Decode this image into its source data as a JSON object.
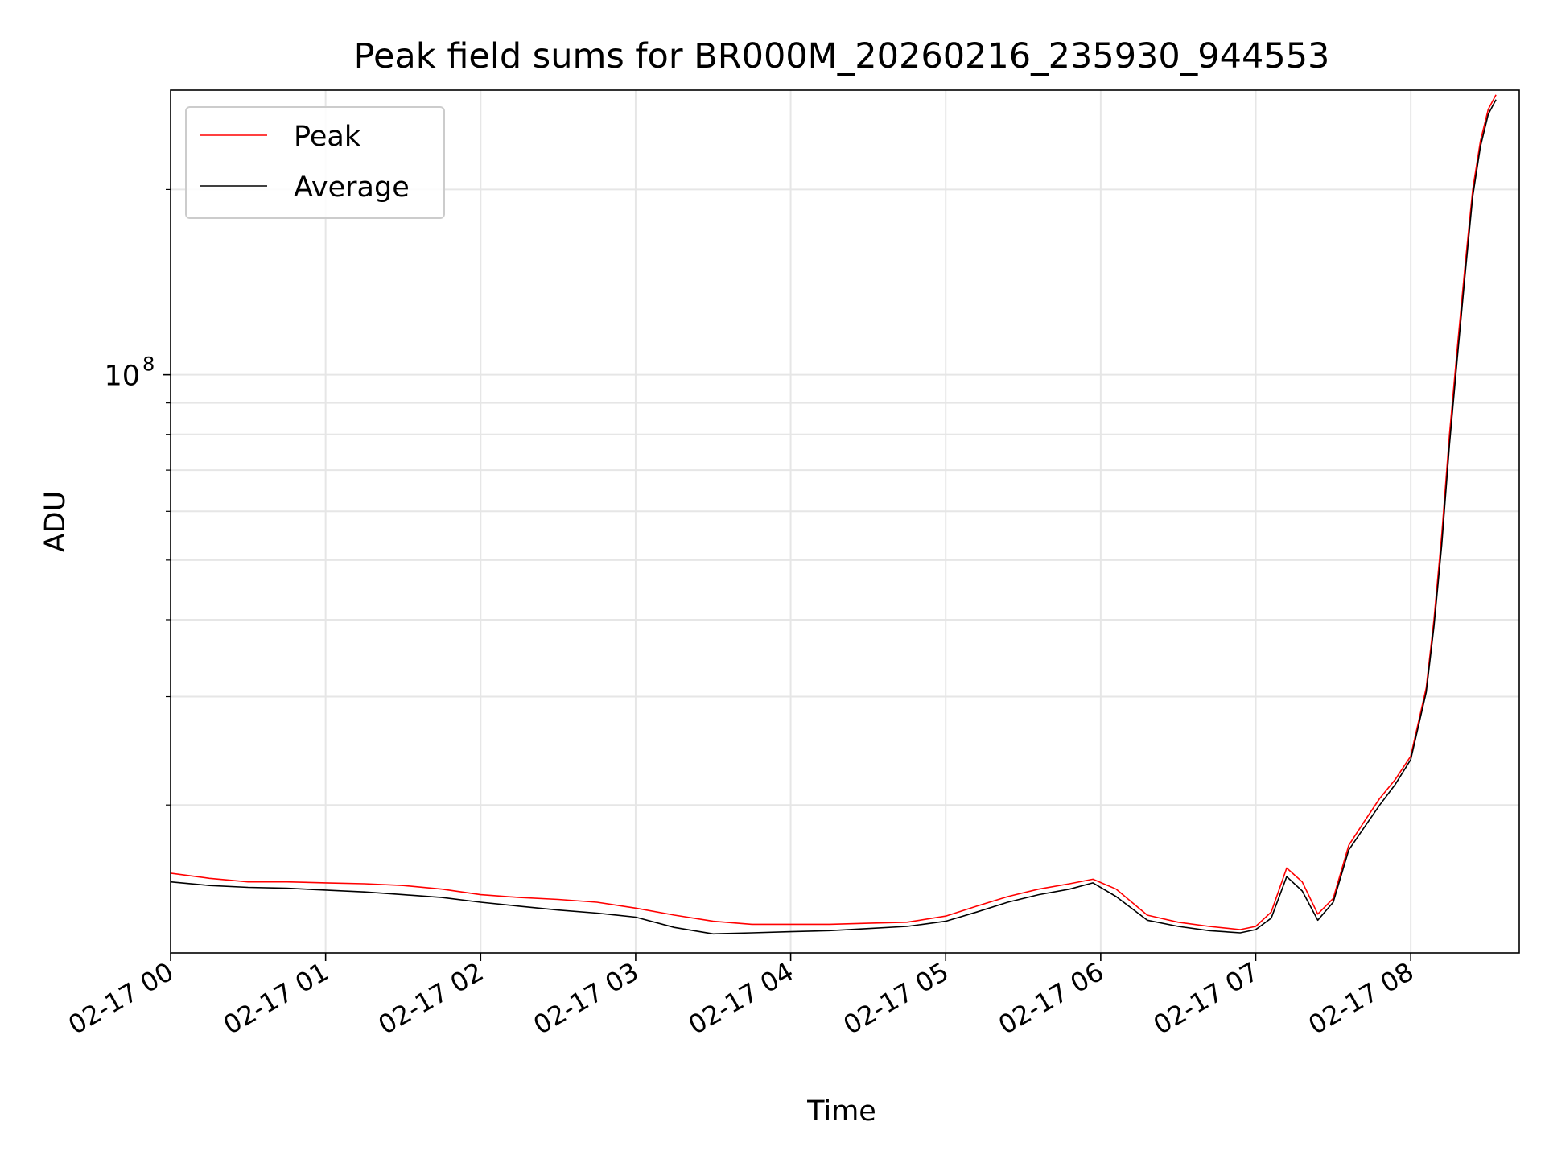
{
  "chart_data": {
    "type": "line",
    "title": "Peak field sums for BR000M_20260216_235930_944553",
    "xlabel": "Time",
    "ylabel": "ADU",
    "yscale": "log",
    "xlim_hours": [
      0,
      8.7
    ],
    "ylim": [
      11500000,
      290000000
    ],
    "grid": true,
    "legend_position": "upper-left",
    "x_tick_hours": [
      0,
      1,
      2,
      3,
      4,
      5,
      6,
      7,
      8
    ],
    "x_tick_labels": [
      "02-17 00",
      "02-17 01",
      "02-17 02",
      "02-17 03",
      "02-17 04",
      "02-17 05",
      "02-17 06",
      "02-17 07",
      "02-17 08"
    ],
    "y_major_ticks": [
      100000000
    ],
    "y_major_labels": [
      "10",
      "8"
    ],
    "y_minor_ticks": [
      20000000,
      30000000,
      40000000,
      50000000,
      60000000,
      70000000,
      80000000,
      90000000,
      200000000
    ],
    "colors": {
      "peak": "#ff0000",
      "average": "#000000",
      "grid": "#e6e6e6",
      "legend_border": "#cccccc"
    },
    "series": [
      {
        "name": "Peak",
        "color": "#ff0000",
        "x_hours": [
          0,
          0.25,
          0.5,
          0.75,
          1.0,
          1.25,
          1.5,
          1.75,
          2.0,
          2.25,
          2.5,
          2.75,
          3.0,
          3.25,
          3.5,
          3.75,
          4.0,
          4.25,
          4.5,
          4.75,
          5.0,
          5.2,
          5.4,
          5.6,
          5.8,
          5.95,
          6.1,
          6.3,
          6.5,
          6.7,
          6.9,
          7.0,
          7.1,
          7.2,
          7.3,
          7.4,
          7.5,
          7.6,
          7.7,
          7.8,
          7.9,
          8.0,
          8.1,
          8.15,
          8.2,
          8.25,
          8.3,
          8.35,
          8.4,
          8.45,
          8.5,
          8.55
        ],
        "values": [
          15500000,
          15200000,
          15000000,
          15000000,
          14950000,
          14900000,
          14800000,
          14600000,
          14300000,
          14150000,
          14050000,
          13900000,
          13600000,
          13250000,
          12950000,
          12800000,
          12800000,
          12800000,
          12850000,
          12900000,
          13200000,
          13700000,
          14200000,
          14600000,
          14900000,
          15150000,
          14600000,
          13250000,
          12900000,
          12700000,
          12550000,
          12700000,
          13400000,
          15800000,
          15000000,
          13300000,
          14100000,
          17200000,
          18800000,
          20500000,
          22000000,
          24000000,
          31000000,
          40000000,
          55000000,
          80000000,
          110000000,
          150000000,
          200000000,
          240000000,
          270000000,
          285000000
        ]
      },
      {
        "name": "Average",
        "color": "#000000",
        "x_hours": [
          0,
          0.25,
          0.5,
          0.75,
          1.0,
          1.25,
          1.5,
          1.75,
          2.0,
          2.25,
          2.5,
          2.75,
          3.0,
          3.25,
          3.5,
          3.75,
          4.0,
          4.25,
          4.5,
          4.75,
          5.0,
          5.2,
          5.4,
          5.6,
          5.8,
          5.95,
          6.1,
          6.3,
          6.5,
          6.7,
          6.9,
          7.0,
          7.1,
          7.2,
          7.3,
          7.4,
          7.5,
          7.6,
          7.7,
          7.8,
          7.9,
          8.0,
          8.1,
          8.15,
          8.2,
          8.25,
          8.3,
          8.35,
          8.4,
          8.45,
          8.5,
          8.55
        ],
        "values": [
          15000000,
          14800000,
          14700000,
          14650000,
          14550000,
          14450000,
          14300000,
          14150000,
          13900000,
          13700000,
          13500000,
          13350000,
          13150000,
          12650000,
          12350000,
          12400000,
          12450000,
          12500000,
          12600000,
          12700000,
          12950000,
          13400000,
          13900000,
          14300000,
          14600000,
          14950000,
          14200000,
          13000000,
          12700000,
          12500000,
          12400000,
          12550000,
          13100000,
          15300000,
          14500000,
          13000000,
          13900000,
          16900000,
          18400000,
          20000000,
          21600000,
          23700000,
          30500000,
          39000000,
          53000000,
          77000000,
          106000000,
          145000000,
          195000000,
          235000000,
          265000000,
          280000000
        ]
      }
    ]
  }
}
